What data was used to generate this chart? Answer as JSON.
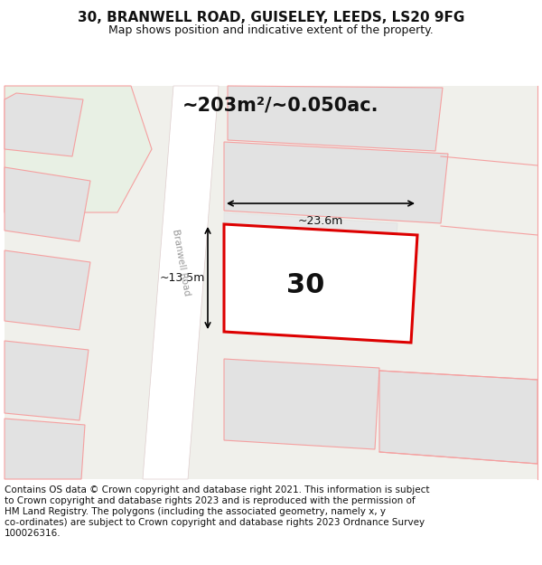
{
  "title": "30, BRANWELL ROAD, GUISELEY, LEEDS, LS20 9FG",
  "subtitle": "Map shows position and indicative extent of the property.",
  "area_label": "~203m²/~0.050ac.",
  "number_label": "30",
  "width_label": "~23.6m",
  "height_label": "~13.5m",
  "road_label": "Branwell Road",
  "footer_lines": [
    "Contains OS data © Crown copyright and database right 2021. This information is subject",
    "to Crown copyright and database rights 2023 and is reproduced with the permission of",
    "HM Land Registry. The polygons (including the associated geometry, namely x, y",
    "co-ordinates) are subject to Crown copyright and database rights 2023 Ordnance Survey",
    "100026316."
  ],
  "bg_color": "#ffffff",
  "map_bg": "#f0f0eb",
  "red_stroke": "#dd0000",
  "pink_stroke": "#f5a0a0",
  "green_fill": "#e8f0e4",
  "road_fill": "#ffffff",
  "building_fill": "#e2e2e2",
  "title_fontsize": 11,
  "subtitle_fontsize": 9,
  "footer_fontsize": 7.5
}
